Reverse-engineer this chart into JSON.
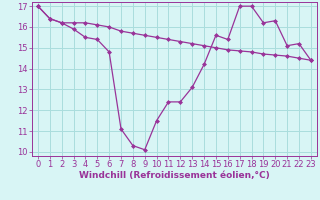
{
  "line1_x": [
    0,
    1,
    2,
    3,
    4,
    5,
    6,
    7,
    8,
    9,
    10,
    11,
    12,
    13,
    14,
    15,
    16,
    17,
    18,
    19,
    20,
    21,
    22,
    23
  ],
  "line1_y": [
    17.0,
    16.4,
    16.2,
    15.9,
    15.5,
    15.4,
    14.8,
    11.1,
    10.3,
    10.1,
    11.5,
    12.4,
    12.4,
    13.1,
    14.2,
    15.6,
    15.4,
    17.0,
    17.0,
    16.2,
    16.3,
    15.1,
    15.2,
    14.4
  ],
  "line2_x": [
    0,
    1,
    2,
    3,
    4,
    5,
    6,
    7,
    8,
    9,
    10,
    11,
    12,
    13,
    14,
    15,
    16,
    17,
    18,
    19,
    20,
    21,
    22,
    23
  ],
  "line2_y": [
    17.0,
    16.4,
    16.2,
    16.2,
    16.2,
    16.1,
    16.0,
    15.8,
    15.7,
    15.6,
    15.5,
    15.4,
    15.3,
    15.2,
    15.1,
    15.0,
    14.9,
    14.85,
    14.8,
    14.7,
    14.65,
    14.6,
    14.5,
    14.4
  ],
  "line_color": "#993399",
  "bg_color": "#d8f5f5",
  "grid_color": "#aadddd",
  "xlabel": "Windchill (Refroidissement éolien,°C)",
  "xlim": [
    -0.5,
    23.5
  ],
  "ylim": [
    9.8,
    17.2
  ],
  "yticks": [
    10,
    11,
    12,
    13,
    14,
    15,
    16,
    17
  ],
  "xticks": [
    0,
    1,
    2,
    3,
    4,
    5,
    6,
    7,
    8,
    9,
    10,
    11,
    12,
    13,
    14,
    15,
    16,
    17,
    18,
    19,
    20,
    21,
    22,
    23
  ],
  "tick_color": "#993399",
  "label_color": "#993399",
  "font_size_xlabel": 6.5,
  "font_size_ticks": 6.0
}
